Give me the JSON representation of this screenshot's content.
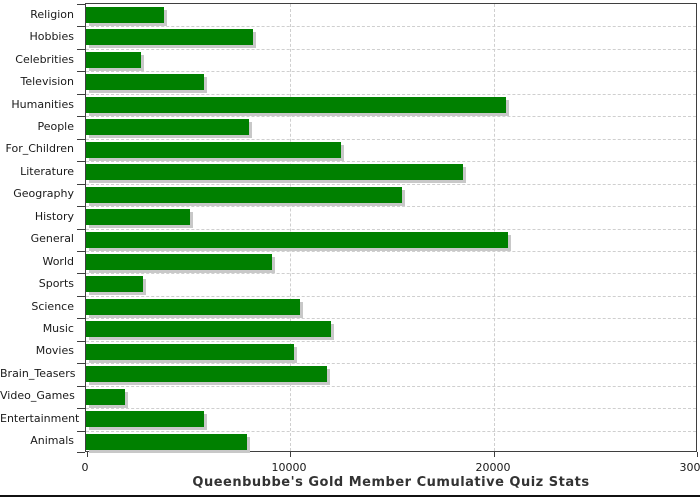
{
  "chart_data": {
    "type": "bar",
    "orientation": "horizontal",
    "title": "Queenbubbe's Gold Member Cumulative Quiz Stats",
    "categories": [
      "Religion",
      "Hobbies",
      "Celebrities",
      "Television",
      "Humanities",
      "People",
      "For_Children",
      "Literature",
      "Geography",
      "History",
      "General",
      "World",
      "Sports",
      "Science",
      "Music",
      "Movies",
      "Brain_Teasers",
      "Video_Games",
      "Entertainment",
      "Animals"
    ],
    "values": [
      3800,
      8200,
      2700,
      5800,
      20600,
      8000,
      12500,
      18500,
      15500,
      5100,
      20700,
      9100,
      2800,
      10500,
      12000,
      10200,
      11800,
      1900,
      5800,
      7900
    ],
    "xlim": [
      0,
      30000
    ],
    "x_ticks": [
      0,
      10000,
      20000,
      30000
    ],
    "x_tick_labels": [
      "0",
      "10000",
      "20000",
      "30000"
    ],
    "ylabel": "",
    "xlabel": "",
    "legend": "none",
    "grid": true,
    "colors": {
      "bar_fill": "#008000",
      "bar_shadow": "#c8c8c8",
      "gridline": "#cfcfcf",
      "plot_border": "#3f3f3f",
      "text": "#1a1a1a",
      "title_text": "#333333",
      "background": "#ffffff"
    }
  }
}
